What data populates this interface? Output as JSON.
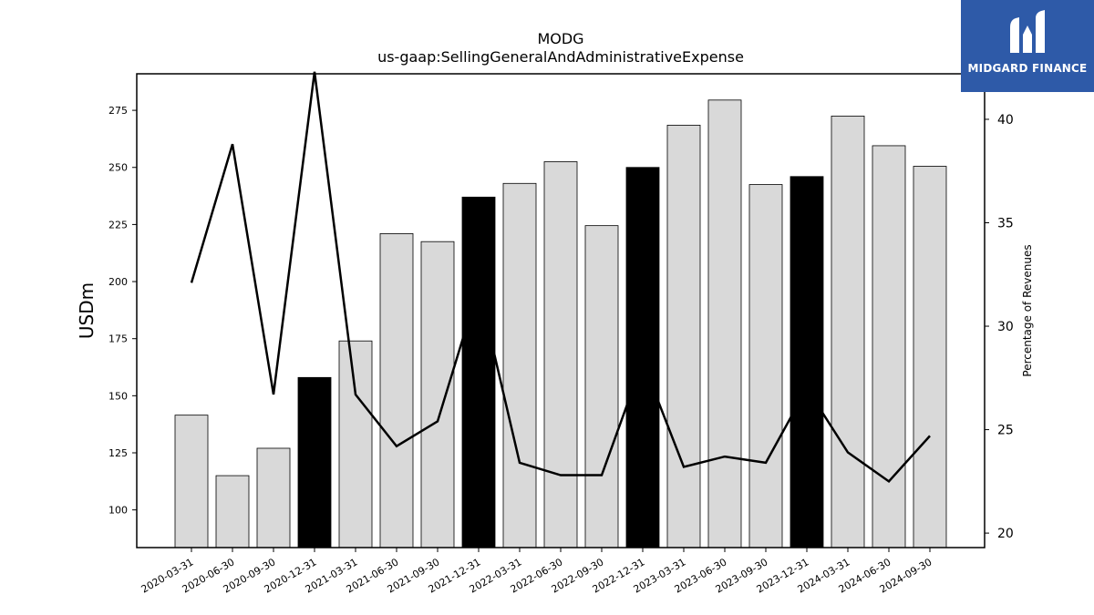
{
  "colors": {
    "bar_normal": "#d9d9d9",
    "bar_highlight": "#000000",
    "bar_edge": "#000000",
    "line": "#000000",
    "logo_bg": "#2e5aa8"
  },
  "logo": {
    "text": "MIDGARD FINANCE",
    "icon": "midgard-logo-mark"
  },
  "chart_data": {
    "type": "bar",
    "title": "MODG",
    "subtitle": "us-gaap:SellingGeneralAndAdministrativeExpense",
    "ylabel": "USDm",
    "y2label": "Percentage of Revenues",
    "ylim": [
      83.5,
      291
    ],
    "y2lim": [
      19.3,
      42.2
    ],
    "yticks": [
      100,
      125,
      150,
      175,
      200,
      225,
      250,
      275
    ],
    "y2ticks": [
      20,
      25,
      30,
      35,
      40
    ],
    "categories": [
      "2020-03-31",
      "2020-06-30",
      "2020-09-30",
      "2020-12-31",
      "2021-03-31",
      "2021-06-30",
      "2021-09-30",
      "2021-12-31",
      "2022-03-31",
      "2022-06-30",
      "2022-09-30",
      "2022-12-31",
      "2023-03-31",
      "2023-06-30",
      "2023-09-30",
      "2023-12-31",
      "2024-03-31",
      "2024-06-30",
      "2024-09-30"
    ],
    "series": [
      {
        "type": "bar",
        "axis": "left",
        "values": [
          141.5,
          115,
          127,
          158,
          174,
          221,
          217.5,
          237,
          243,
          252.5,
          224.5,
          250,
          268.5,
          279.5,
          242.5,
          246,
          272.5,
          259.5,
          250.5
        ],
        "highlight": [
          false,
          false,
          false,
          true,
          false,
          false,
          false,
          true,
          false,
          false,
          false,
          true,
          false,
          false,
          false,
          true,
          false,
          false,
          false
        ]
      },
      {
        "type": "line",
        "axis": "right",
        "values": [
          32.1,
          38.8,
          26.7,
          42.3,
          26.7,
          24.2,
          25.4,
          31.9,
          23.4,
          22.8,
          22.8,
          28.3,
          23.2,
          23.7,
          23.4,
          27.0,
          23.9,
          22.5,
          24.7
        ]
      }
    ],
    "grid": false,
    "legend": "none"
  }
}
